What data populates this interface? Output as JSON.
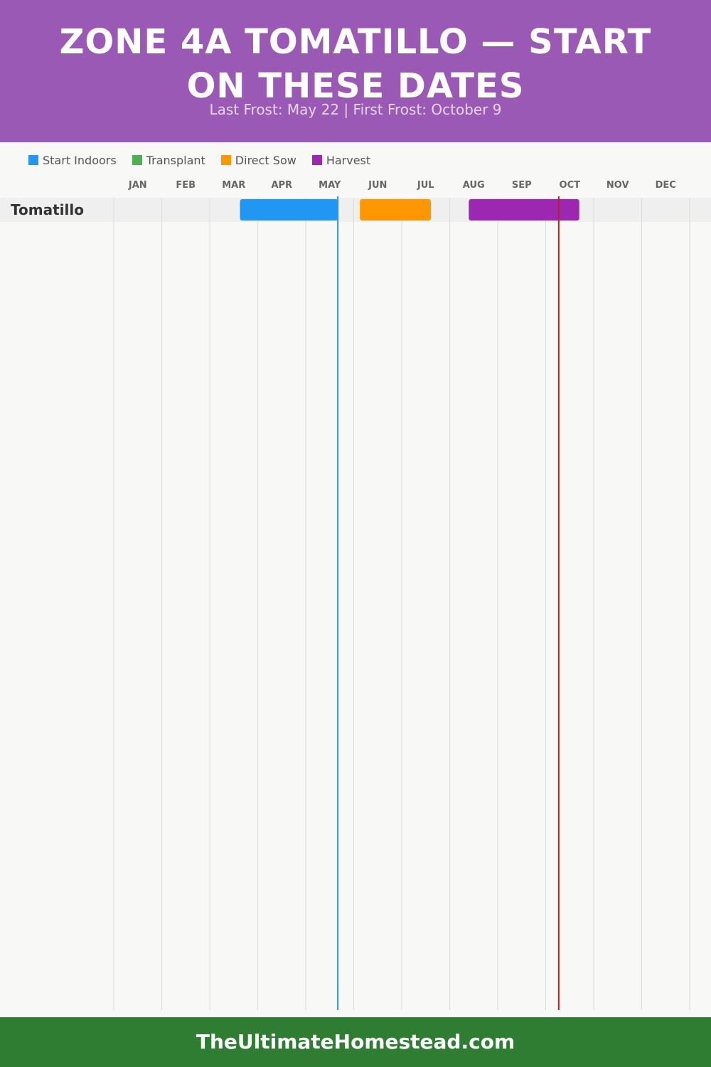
{
  "header": {
    "title": "ZONE 4A TOMATILLO — START ON THESE DATES",
    "subtitle": "Last Frost: May 22 | First Frost: October 9",
    "background": "#9b59b6"
  },
  "legend": [
    {
      "label": "Start Indoors",
      "color": "#2196f3"
    },
    {
      "label": "Transplant",
      "color": "#4caf50"
    },
    {
      "label": "Direct Sow",
      "color": "#ff9800"
    },
    {
      "label": "Harvest",
      "color": "#9c27b0"
    }
  ],
  "chart_data": {
    "type": "gantt",
    "months": [
      "JAN",
      "FEB",
      "MAR",
      "APR",
      "MAY",
      "JUN",
      "JUL",
      "AUG",
      "SEP",
      "OCT",
      "NOV",
      "DEC"
    ],
    "year_days": 365,
    "rows": [
      {
        "crop": "Tomatillo",
        "bars": [
          {
            "phase": "Start Indoors",
            "start_day": 80,
            "end_day": 142,
            "color": "#2196f3"
          },
          {
            "phase": "Direct Sow",
            "start_day": 156,
            "end_day": 201,
            "color": "#ff9800"
          },
          {
            "phase": "Harvest",
            "start_day": 225,
            "end_day": 295,
            "color": "#9c27b0"
          }
        ]
      }
    ],
    "frost_lines": [
      {
        "name": "Last Frost",
        "day": 142,
        "color": "#2196f3"
      },
      {
        "name": "First Frost",
        "day": 282,
        "color": "#b22222"
      }
    ],
    "grid": true,
    "legend_position": "top-left"
  },
  "footer": {
    "text": "TheUltimateHomestead.com",
    "background": "#2e7d32"
  }
}
